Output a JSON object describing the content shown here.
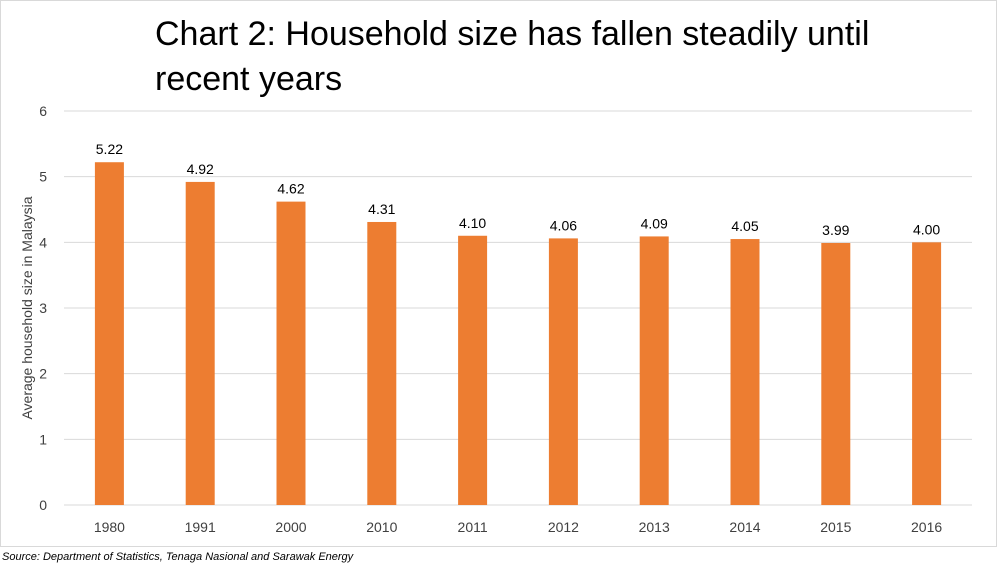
{
  "title": "Chart 2: Household size has fallen steadily until recent years",
  "source": "Source: Department of Statistics, Tenaga Nasional and Sarawak Energy",
  "colors": {
    "bar": "#ed7d31",
    "grid": "#d9d9d9",
    "text": "#404040"
  },
  "chart_data": {
    "type": "bar",
    "title": "Chart 2: Household size has fallen steadily until recent years",
    "xlabel": "",
    "ylabel": "Average household size in Malaysia",
    "categories": [
      "1980",
      "1991",
      "2000",
      "2010",
      "2011",
      "2012",
      "2013",
      "2014",
      "2015",
      "2016"
    ],
    "values": [
      5.22,
      4.92,
      4.62,
      4.31,
      4.1,
      4.06,
      4.09,
      4.05,
      3.99,
      4.0
    ],
    "data_labels": [
      "5.22",
      "4.92",
      "4.62",
      "4.31",
      "4.10",
      "4.06",
      "4.09",
      "4.05",
      "3.99",
      "4.00"
    ],
    "ylim": [
      0,
      6
    ],
    "yticks": [
      0,
      1,
      2,
      3,
      4,
      5,
      6
    ],
    "grid": true,
    "legend": "none"
  }
}
